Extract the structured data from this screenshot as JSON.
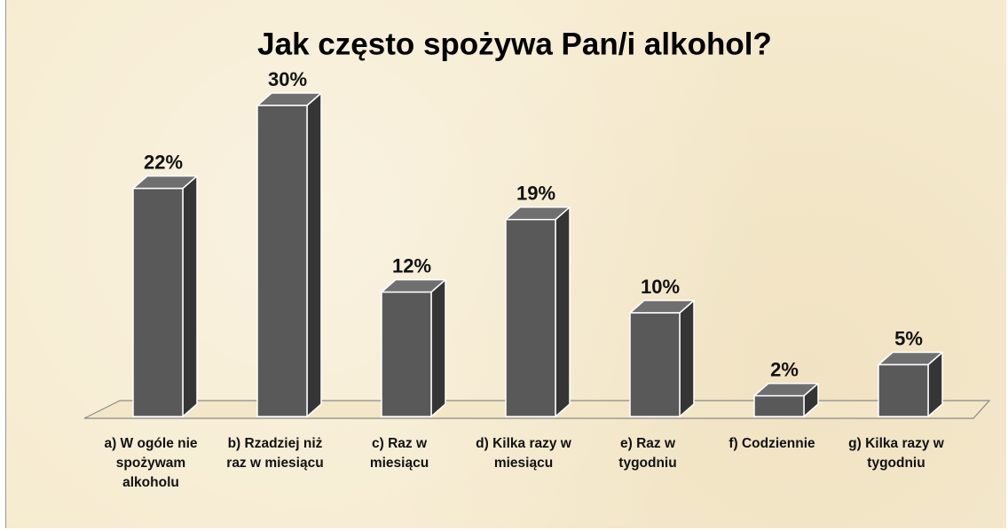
{
  "chart_data": {
    "type": "bar3d",
    "title": "Jak często spożywa Pan/i alkohol?",
    "categories": [
      "a) W ogóle nie spożywam alkoholu",
      "b) Rzadziej niż raz w miesiącu",
      "c) Raz w miesiącu",
      "d) Kilka razy w miesiącu",
      "e) Raz w tygodniu",
      "f) Codziennie",
      "g) Kilka razy w tygodniu"
    ],
    "values": [
      22,
      30,
      12,
      19,
      10,
      2,
      5
    ],
    "value_labels": [
      "22%",
      "30%",
      "12%",
      "19%",
      "10%",
      "2%",
      "5%"
    ],
    "color": "#595959"
  }
}
